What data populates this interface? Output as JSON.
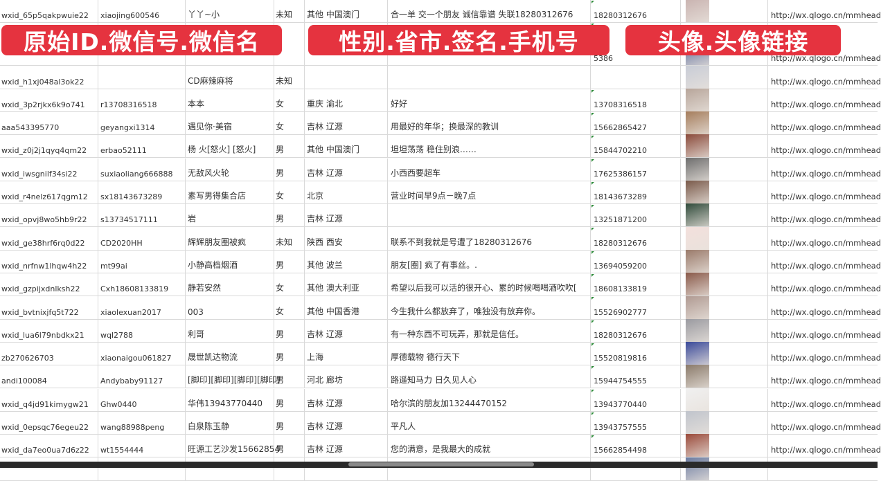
{
  "banners": [
    "原始ID.微信号.微信名",
    "性别.省市.签名.手机号",
    "头像.头像链接"
  ],
  "rows": [
    {
      "id": "wxid_65p5qakpwuie22",
      "wechat": "xiaojing600546",
      "name": "丫丫~小",
      "gender": "未知",
      "region": "其他 中国澳门",
      "signature": "合一单 交一个朋友 诚信靠谱 失联18280312676",
      "phone": "18280312676",
      "avatar_color": "#c9b3b0",
      "link": "http://wx.qlogo.cn/mmhead"
    },
    {
      "id": "",
      "wechat": "",
      "name": "",
      "gender": "",
      "region": "",
      "signature": "",
      "phone": "5386",
      "avatar_color": "#5a6a9a",
      "link": "http://wx.qlogo.cn/mmhead"
    },
    {
      "id": "wxid_h1xj048al3ok22",
      "wechat": "",
      "name": "CD麻辣麻将",
      "gender": "未知",
      "region": "",
      "signature": "",
      "phone": "",
      "avatar_color": "#c8ccd6",
      "link": "http://wx.qlogo.cn/mmhead"
    },
    {
      "id": "wxid_3p2rjkx6k9o741",
      "wechat": "r13708316518",
      "name": "本本",
      "gender": "女",
      "region": "重庆 渝北",
      "signature": "好好",
      "phone": "13708316518",
      "avatar_color": "#b7a59a",
      "link": "http://wx.qlogo.cn/mmhead"
    },
    {
      "id": "aaa543395770",
      "wechat": "geyangxi1314",
      "name": "遇见你·美宿",
      "gender": "女",
      "region": "吉林 辽源",
      "signature": "用最好的年华；换最深的教训",
      "phone": "15662865427",
      "avatar_color": "#a57d5c",
      "link": "http://wx.qlogo.cn/mmhead"
    },
    {
      "id": "wxid_z0j2j1qyq4qm22",
      "wechat": "erbao52111",
      "name": "杨 火[怒火] [怒火]",
      "gender": "男",
      "region": "其他 中国澳门",
      "signature": "坦坦荡荡 稳住别浪……",
      "phone": "15844702210",
      "avatar_color": "#8a4a3a",
      "link": "http://wx.qlogo.cn/mmhead"
    },
    {
      "id": "wxid_iwsgnilf34si22",
      "wechat": "suxiaoliang666888",
      "name": "无敌风火轮",
      "gender": "男",
      "region": "吉林 辽源",
      "signature": "小西西要超车",
      "phone": "17625386157",
      "avatar_color": "#6d6d6d",
      "link": "http://wx.qlogo.cn/mmhead"
    },
    {
      "id": "wxid_r4nelz617qgm12",
      "wechat": "sx18143673289",
      "name": "素写男得集合店",
      "gender": "女",
      "region": "北京",
      "signature": "营业时间早9点－晚7点",
      "phone": "18143673289",
      "avatar_color": "#7a5a4a",
      "link": "http://wx.qlogo.cn/mmhead"
    },
    {
      "id": "wxid_opvj8wo5hb9r22",
      "wechat": "s13734517111",
      "name": "岩",
      "gender": "男",
      "region": "吉林 辽源",
      "signature": "",
      "phone": "13251871200",
      "avatar_color": "#2f4a3a",
      "link": "http://wx.qlogo.cn/mmhead"
    },
    {
      "id": "wxid_ge38hrf6rq0d22",
      "wechat": "CD2020HH",
      "name": "辉辉朋友圈被疯",
      "gender": "未知",
      "region": "陕西 西安",
      "signature": "联系不到我就是号遭了18280312676",
      "phone": "18280312676",
      "avatar_color": "#f3e0dc",
      "link": "http://wx.qlogo.cn/mmhead"
    },
    {
      "id": "wxid_nrfnw1lhqw4h22",
      "wechat": "mt99ai",
      "name": "小静高档烟酒",
      "gender": "男",
      "region": "其他 波兰",
      "signature": "朋友[圈] 疯了有事丝。.",
      "phone": "13694059200",
      "avatar_color": "#9a7a6a",
      "link": "http://wx.qlogo.cn/mmhead"
    },
    {
      "id": "wxid_gzpijxdnlksh22",
      "wechat": "Cxh18608133819",
      "name": "静若安然",
      "gender": "女",
      "region": "其他 澳大利亚",
      "signature": "希望以后我可以活的很开心、累的时候喝喝酒吹吹[",
      "phone": "18608133819",
      "avatar_color": "#8a5a4a",
      "link": "http://wx.qlogo.cn/mmhead"
    },
    {
      "id": "wxid_bvtnixjfq5t722",
      "wechat": "xiaolexuan2017",
      "name": "003",
      "gender": "女",
      "region": "其他 中国香港",
      "signature": "今生我什么都放弃了，唯独没有放弃你。",
      "phone": "15526902777",
      "avatar_color": "#b09a92",
      "link": "http://wx.qlogo.cn/mmhead"
    },
    {
      "id": "wxid_lua6l79nbdkx21",
      "wechat": "wql2788",
      "name": "利哥",
      "gender": "男",
      "region": "吉林 辽源",
      "signature": "有一种东西不可玩弄，那就是信任。",
      "phone": "18280312676",
      "avatar_color": "#9a9aa0",
      "link": "http://wx.qlogo.cn/mmhead"
    },
    {
      "id": "zb270626703",
      "wechat": "xiaonaigou061827",
      "name": "晟世凯达物流",
      "gender": "男",
      "region": "上海",
      "signature": "厚德载物 德行天下",
      "phone": "15520819816",
      "avatar_color": "#3a4a9a",
      "link": "http://wx.qlogo.cn/mmhead"
    },
    {
      "id": "andi100084",
      "wechat": "Andybaby91127",
      "name": "[脚印][脚印][脚印][脚印]",
      "gender": "男",
      "region": "河北 廊坊",
      "signature": "路遥知马力 日久见人心",
      "phone": "15944754555",
      "avatar_color": "#8a7a6a",
      "link": "http://wx.qlogo.cn/mmhead"
    },
    {
      "id": "wxid_q4jd91kimygw21",
      "wechat": "Ghw0440",
      "name": "华伟13943770440",
      "gender": "男",
      "region": "吉林 辽源",
      "signature": "哈尔滨的朋友加13244470152",
      "phone": "13943770440",
      "avatar_color": "#f0f0f0",
      "link": "http://wx.qlogo.cn/mmhead"
    },
    {
      "id": "wxid_0epsqc76egeu22",
      "wechat": "wang88988peng",
      "name": "白泉陈玉静",
      "gender": "男",
      "region": "吉林 辽源",
      "signature": "平凡人",
      "phone": "13943757555",
      "avatar_color": "#c0c4cc",
      "link": "http://wx.qlogo.cn/mmhead"
    },
    {
      "id": "wxid_da7eo0ua7d6z22",
      "wechat": "wt1554444",
      "name": "旺源工艺沙发15662854",
      "gender": "男",
      "region": "吉林 辽源",
      "signature": "您的满意，是我最大的成就",
      "phone": "15662854498",
      "avatar_color": "#9a4a3a",
      "link": "http://wx.qlogo.cn/mmhead"
    },
    {
      "id": "",
      "wechat": "",
      "name": "",
      "gender": "",
      "region": "",
      "signature": "",
      "phone": "",
      "avatar_color": "#6a7aa0",
      "link": ""
    }
  ],
  "colors": {
    "banner": "#e5333f",
    "grid": "#d9d9d9",
    "number_flag": "#2e8b3a"
  }
}
